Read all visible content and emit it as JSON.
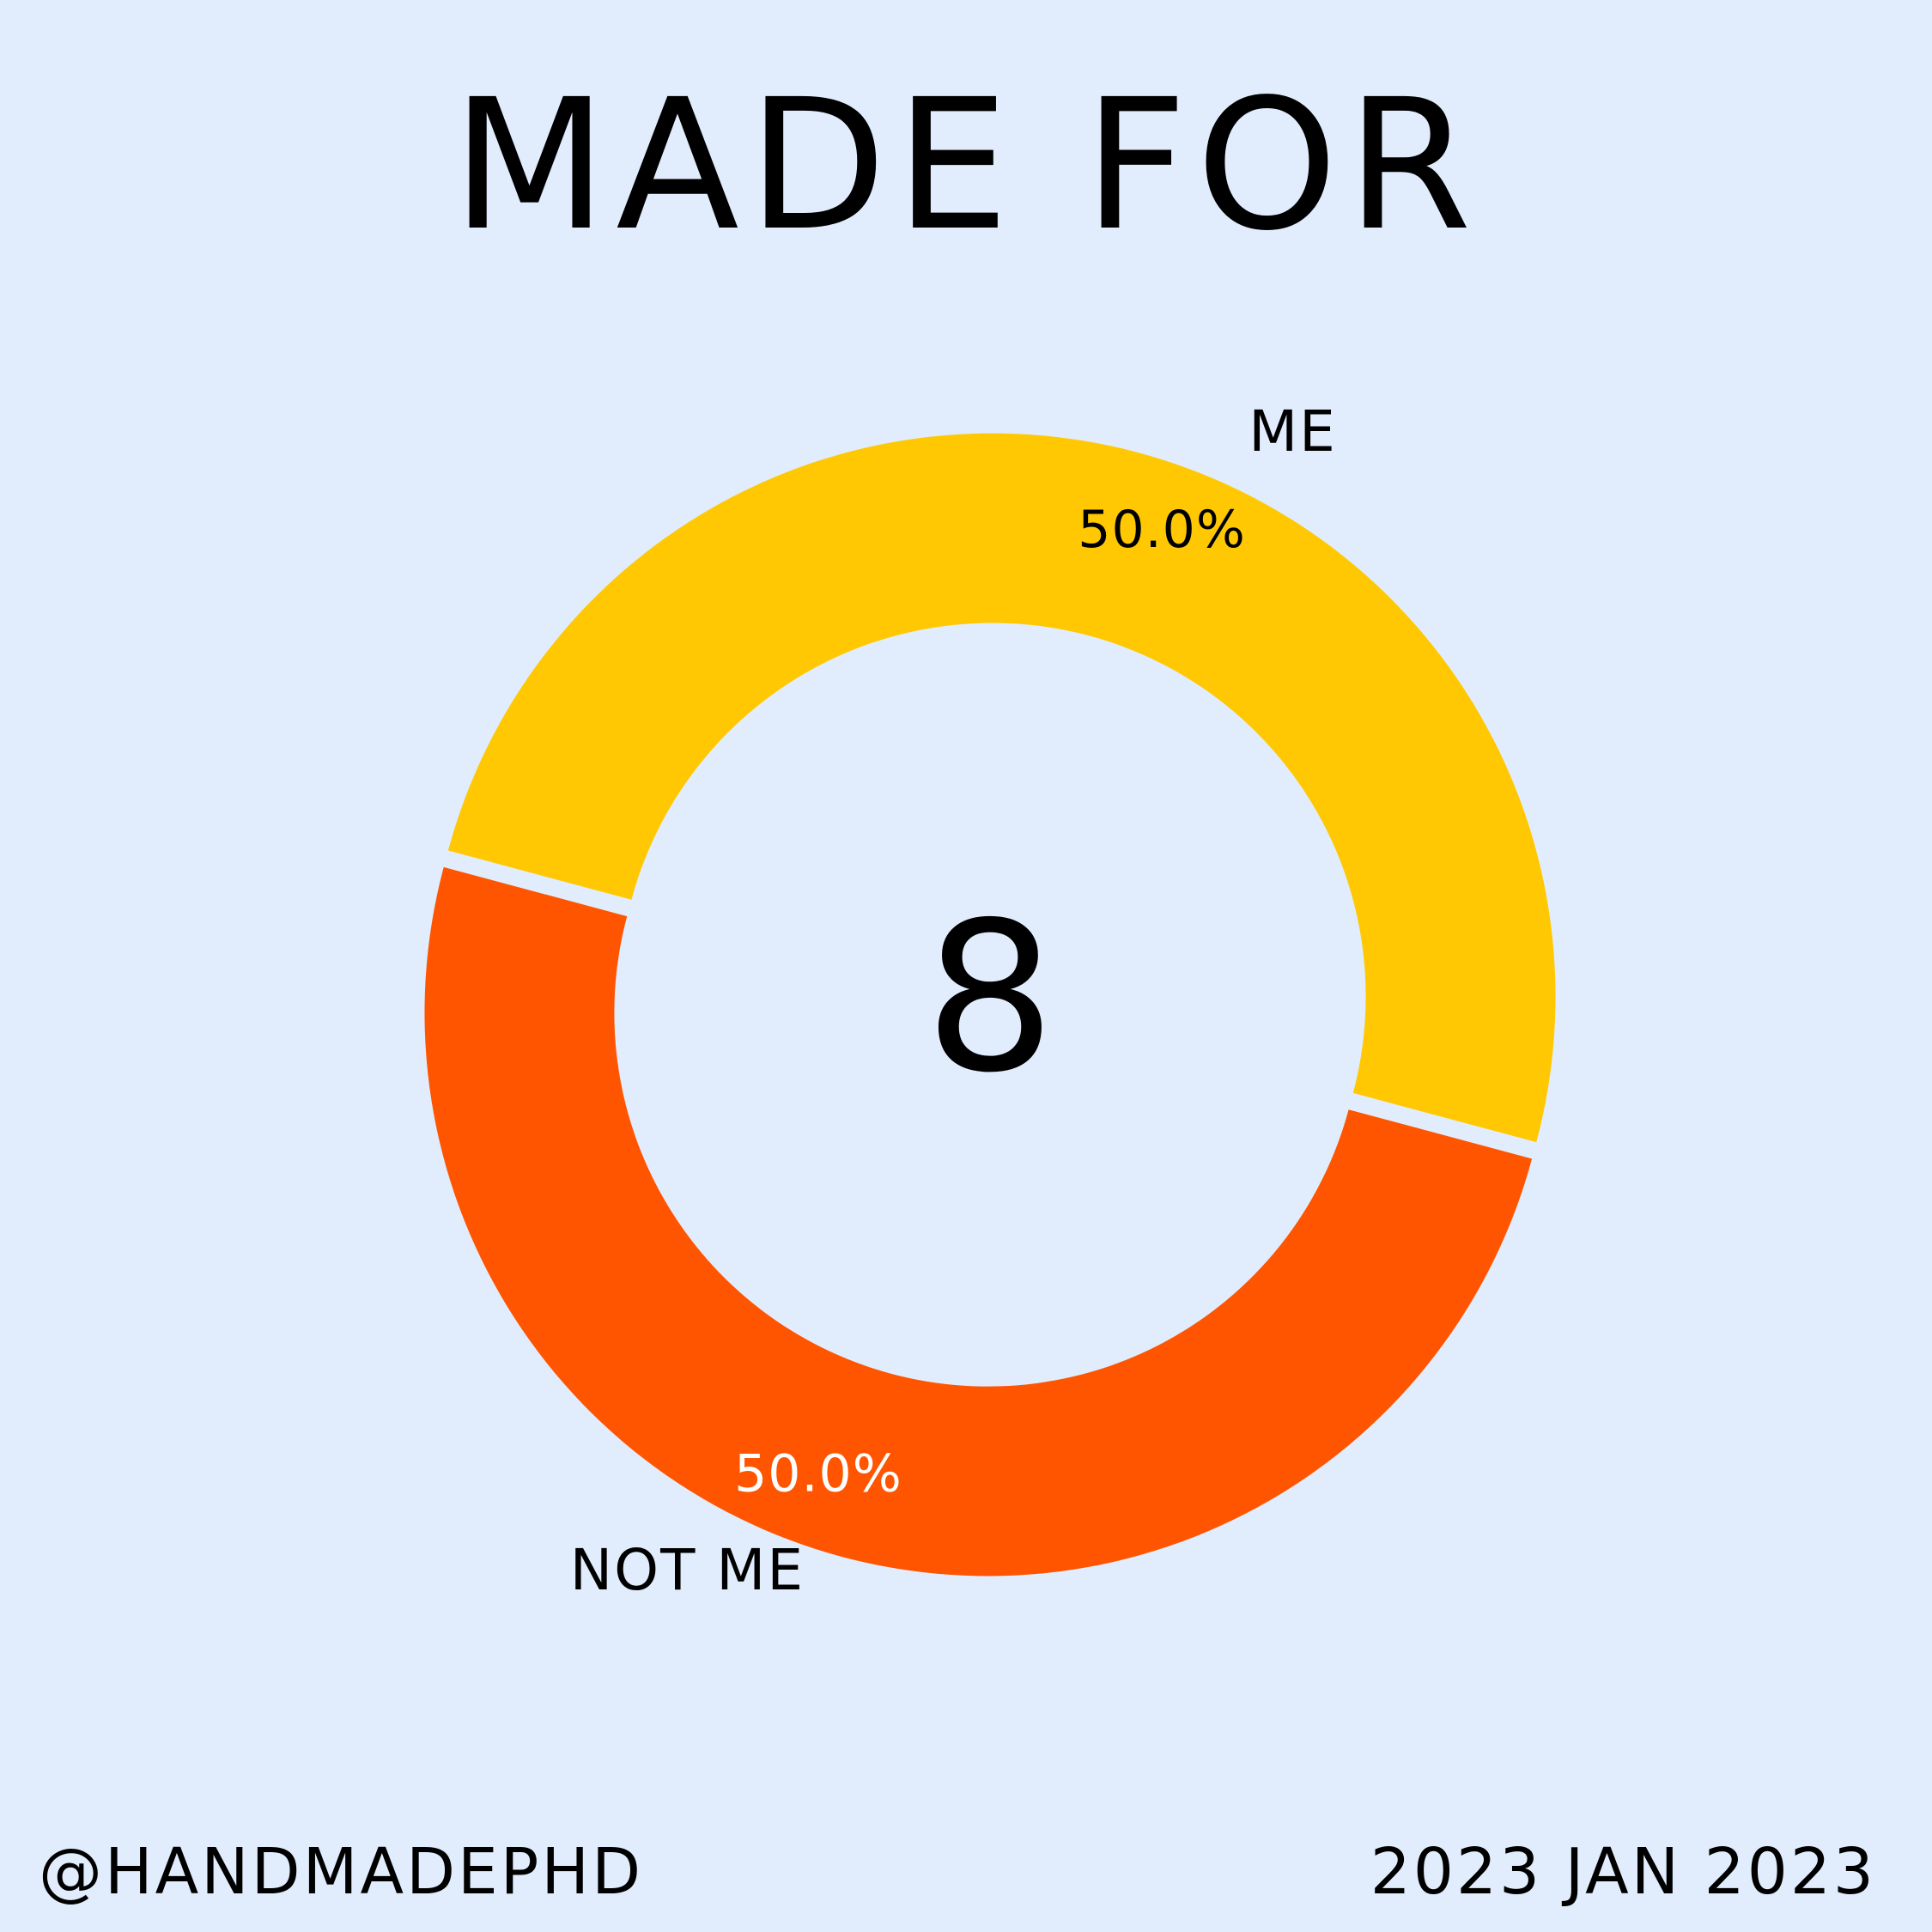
{
  "title": "MADE FOR",
  "center_value": "8",
  "footer": {
    "handle": "@HANDMADEPHD",
    "date": "2023 JAN 2023"
  },
  "chart_data": {
    "type": "pie",
    "title": "MADE FOR",
    "categories": [
      "ME",
      "NOT ME"
    ],
    "values": [
      50.0,
      50.0
    ],
    "value_labels": [
      "50.0%",
      "50.0%"
    ],
    "colors": [
      "#ffc802",
      "#ff5500"
    ],
    "label_colors": [
      "#000000",
      "#ffffff"
    ],
    "donut": true,
    "center_label": "8"
  },
  "colors": {
    "background": "#e1edfd",
    "text": "#000000"
  }
}
